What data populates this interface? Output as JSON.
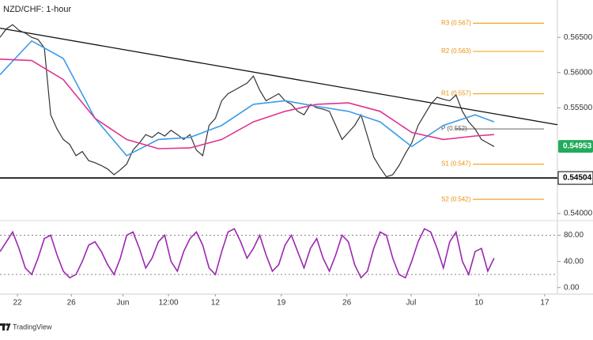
{
  "chart_data": [
    {
      "type": "line",
      "title": "NZD/CHF: 1-hour",
      "x": [
        0,
        1,
        2,
        3,
        4,
        5,
        6,
        7,
        8,
        9,
        10,
        11,
        12,
        13,
        14,
        15,
        16,
        17,
        18,
        19,
        20,
        21,
        22,
        23,
        24,
        25,
        26,
        27,
        28,
        29,
        30,
        31,
        32,
        33,
        34,
        35,
        36,
        37,
        38,
        39,
        40,
        41,
        42,
        43,
        44,
        45,
        46,
        47,
        48,
        49,
        50,
        51,
        52,
        53,
        54,
        55,
        56,
        57,
        58,
        59,
        60,
        61,
        62,
        63,
        64,
        65,
        66,
        67,
        68,
        69,
        70,
        71,
        72,
        73,
        74,
        75,
        76,
        77,
        78
      ],
      "series": [
        {
          "color": "#333333",
          "values": [
            0.565,
            0.5662,
            0.5668,
            0.566,
            0.5656,
            0.565,
            0.5647,
            0.5635,
            0.554,
            0.552,
            0.5505,
            0.5498,
            0.5482,
            0.5488,
            0.5475,
            0.5472,
            0.5468,
            0.5463,
            0.5455,
            0.5462,
            0.547,
            0.549,
            0.55,
            0.5512,
            0.5508,
            0.5515,
            0.551,
            0.5518,
            0.5512,
            0.5505,
            0.5512,
            0.549,
            0.5482,
            0.5525,
            0.5535,
            0.556,
            0.557,
            0.5575,
            0.558,
            0.5585,
            0.5595,
            0.5575,
            0.556,
            0.5565,
            0.557,
            0.556,
            0.5555,
            0.5545,
            0.554,
            0.5555,
            0.555,
            0.5548,
            0.5545,
            0.5525,
            0.5505,
            0.5515,
            0.5525,
            0.554,
            0.551,
            0.548,
            0.5465,
            0.5452,
            0.5455,
            0.5468,
            0.5485,
            0.55,
            0.5525,
            0.554,
            0.5555,
            0.5565,
            0.5562,
            0.556,
            0.5568,
            0.5545,
            0.553,
            0.552,
            0.5505,
            0.55,
            0.5495
          ]
        },
        {
          "color": "#3d9be9",
          "x": [
            0,
            5,
            10,
            15,
            20,
            25,
            30,
            35,
            40,
            45,
            50,
            55,
            60,
            65,
            70,
            75,
            78
          ],
          "values": [
            0.5597,
            0.5645,
            0.562,
            0.5535,
            0.5482,
            0.5505,
            0.5508,
            0.5525,
            0.5555,
            0.556,
            0.5552,
            0.5545,
            0.553,
            0.5495,
            0.5525,
            0.554,
            0.553
          ]
        },
        {
          "color": "#e0338f",
          "x": [
            0,
            5,
            10,
            15,
            20,
            25,
            30,
            35,
            40,
            45,
            50,
            55,
            60,
            65,
            70,
            75,
            78
          ],
          "values": [
            0.5619,
            0.5617,
            0.559,
            0.5535,
            0.5505,
            0.5492,
            0.5493,
            0.5505,
            0.553,
            0.5545,
            0.5555,
            0.5557,
            0.5545,
            0.5515,
            0.5505,
            0.551,
            0.5512
          ]
        }
      ],
      "xlim": [
        0,
        88
      ],
      "ylim": [
        0.5391,
        0.5703
      ],
      "yticks": [
        {
          "value": 0.565,
          "label": "0.56500"
        },
        {
          "value": 0.56,
          "label": "0.56000"
        },
        {
          "value": 0.555,
          "label": "0.55500"
        },
        {
          "value": 0.54,
          "label": "0.54000"
        }
      ],
      "levels": [
        {
          "name": "R3 (0.567)",
          "value": 0.567
        },
        {
          "name": "R2 (0.563)",
          "value": 0.563
        },
        {
          "name": "R1 (0.557)",
          "value": 0.557
        },
        {
          "name": "P (0.552)",
          "value": 0.552
        },
        {
          "name": "S1 (0.547)",
          "value": 0.547
        },
        {
          "name": "S2 (0.542)",
          "value": 0.542
        }
      ],
      "trendline": [
        0.5663,
        0.5526
      ],
      "support": 0.54504,
      "last_price": 0.54953
    },
    {
      "type": "line",
      "x": [
        0,
        1,
        2,
        3,
        4,
        5,
        6,
        7,
        8,
        9,
        10,
        11,
        12,
        13,
        14,
        15,
        16,
        17,
        18,
        19,
        20,
        21,
        22,
        23,
        24,
        25,
        26,
        27,
        28,
        29,
        30,
        31,
        32,
        33,
        34,
        35,
        36,
        37,
        38,
        39,
        40,
        41,
        42,
        43,
        44,
        45,
        46,
        47,
        48,
        49,
        50,
        51,
        52,
        53,
        54,
        55,
        56,
        57,
        58,
        59,
        60,
        61,
        62,
        63,
        64,
        65,
        66,
        67,
        68,
        69,
        70,
        71,
        72,
        73,
        74,
        75,
        76,
        77,
        78
      ],
      "series": [
        {
          "color": "#9c27b0",
          "values": [
            55,
            70,
            85,
            60,
            30,
            20,
            45,
            75,
            80,
            50,
            25,
            15,
            20,
            40,
            65,
            70,
            55,
            35,
            20,
            45,
            80,
            85,
            60,
            30,
            45,
            70,
            80,
            40,
            25,
            55,
            75,
            85,
            65,
            30,
            20,
            55,
            85,
            90,
            70,
            45,
            60,
            80,
            50,
            25,
            35,
            65,
            80,
            55,
            30,
            60,
            75,
            45,
            25,
            50,
            80,
            70,
            35,
            15,
            25,
            60,
            85,
            80,
            45,
            20,
            15,
            40,
            70,
            90,
            85,
            60,
            30,
            70,
            85,
            40,
            20,
            55,
            60,
            25,
            45
          ]
        }
      ],
      "xlim": [
        0,
        88
      ],
      "ylim": [
        -10,
        100
      ],
      "yticks": [
        {
          "value": 80,
          "label": "80.00"
        },
        {
          "value": 40,
          "label": "40.00"
        },
        {
          "value": 0,
          "label": "0.00"
        }
      ],
      "bands": [
        20,
        80
      ],
      "xticks": [
        {
          "value": 2.75,
          "label": "22"
        },
        {
          "value": 11.25,
          "label": "26"
        },
        {
          "value": 19.4,
          "label": "Jun"
        },
        {
          "value": 26.6,
          "label": "12:00"
        },
        {
          "value": 34,
          "label": "12"
        },
        {
          "value": 44.4,
          "label": "19"
        },
        {
          "value": 54.75,
          "label": "26"
        },
        {
          "value": 64.9,
          "label": "Jul"
        },
        {
          "value": 75.6,
          "label": "10"
        },
        {
          "value": 86,
          "label": "17"
        }
      ]
    }
  ],
  "footer": {
    "brand": "TradingView"
  }
}
